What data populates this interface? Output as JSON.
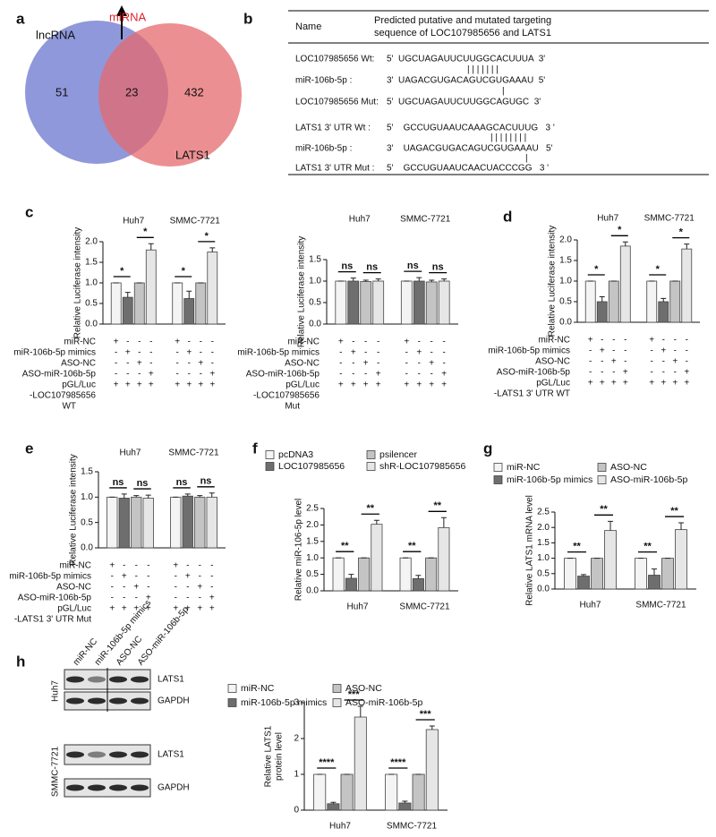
{
  "panels": [
    "a",
    "b",
    "c",
    "d",
    "e",
    "f",
    "g",
    "h"
  ],
  "venn": {
    "sets": [
      "lncRNA",
      "LATS1"
    ],
    "intersection_label": "miRNA",
    "counts": [
      51,
      23,
      432
    ]
  },
  "sequences": {
    "header": [
      "Name",
      "Predicted putative and mutated targeting",
      "sequence of LOC107985656 and LATS1"
    ],
    "rows": [
      [
        "LOC107985656 Wt:",
        "5'  UGCUAGAUUCUUGGCACUUUA  3'"
      ],
      [
        "",
        "| | | | | | |"
      ],
      [
        "miR-106b-5p :",
        "3'  UAGACGUGACAGUCGUGAAAU  5'"
      ],
      [
        "",
        "|"
      ],
      [
        "LOC107985656 Mut:",
        "5'  UGCUAGAUUCUUGGCAGUGC  3'"
      ],
      [
        "LATS1 3' UTR Wt :",
        "5'    GCCUGUAAUCAAAGCACUUUG   3 '"
      ],
      [
        "",
        "| | | | | | | |"
      ],
      [
        "miR-106b-5p :",
        "3'    UAGACGUGACAGUCGUGAAAU   5'"
      ],
      [
        "",
        "|"
      ],
      [
        "LATS1 3' UTR Mut :",
        "5'    GCCUGUAAUCAACUACCCGG   3 '"
      ]
    ]
  },
  "blot": {
    "lanes": [
      "miR-NC",
      "miR-106b-5p mimics",
      "ASO-NC",
      "ASO-miR-106b-5p"
    ],
    "cells": [
      "Huh7",
      "SMMC-7721"
    ],
    "bands": [
      "LATS1",
      "GAPDH"
    ]
  },
  "chart_data": [
    {
      "type": "bar",
      "y_label": [
        "Relative Luciferase intensity"
      ],
      "categories": [
        "Huh7",
        "SMMC-7721"
      ],
      "ylim": [
        0,
        2
      ],
      "yticks": [
        {
          "value": 0,
          "label": "0.0"
        },
        {
          "value": 0.5,
          "label": "0.5"
        },
        {
          "value": 1,
          "label": "1.0"
        },
        {
          "value": 1.5,
          "label": "1.5"
        },
        {
          "value": 2,
          "label": "2.0"
        }
      ],
      "series": [
        {
          "name": "miR-NC",
          "color": "#f4f4f4",
          "values": [
            1,
            1
          ],
          "errors": [
            0,
            0
          ],
          "signs": [
            "+",
            "-",
            "-",
            "-",
            "+",
            "-",
            "-",
            "-"
          ]
        },
        {
          "name": "miR-106b-5p mimics",
          "color": "#6e6e6e",
          "values": [
            0.65,
            0.62
          ],
          "errors": [
            0.12,
            0.18
          ],
          "signs": [
            "-",
            "+",
            "-",
            "-",
            "-",
            "+",
            "-",
            "-"
          ]
        },
        {
          "name": "ASO-NC",
          "color": "#c4c4c4",
          "values": [
            1,
            1
          ],
          "errors": [
            0,
            0
          ],
          "signs": [
            "-",
            "-",
            "+",
            "-",
            "-",
            "-",
            "+",
            "-"
          ]
        },
        {
          "name": "ASO-miR-106b-5p",
          "color": "#e6e6e6",
          "values": [
            1.8,
            1.75
          ],
          "errors": [
            0.15,
            0.1
          ],
          "signs": [
            "-",
            "-",
            "-",
            "+",
            "-",
            "-",
            "-",
            "+"
          ]
        }
      ],
      "reporter": {
        "label": "pGL/Luc",
        "signs": [
          "+",
          "+",
          "+",
          "+",
          "+",
          "+",
          "+",
          "+"
        ]
      },
      "construct": [
        "-LOC107985656",
        "WT"
      ],
      "significance": [
        [
          "*",
          "*"
        ],
        [
          "*",
          "*"
        ]
      ]
    },
    {
      "type": "bar",
      "y_label": [
        "Relative Luciferase intensity"
      ],
      "categories": [
        "Huh7",
        "SMMC-7721"
      ],
      "ylim": [
        0,
        1.5
      ],
      "yticks": [
        {
          "value": 0,
          "label": "0.0"
        },
        {
          "value": 0.5,
          "label": "0.5"
        },
        {
          "value": 1,
          "label": "1.0"
        },
        {
          "value": 1.5,
          "label": "1.5"
        }
      ],
      "series": [
        {
          "name": "miR-NC",
          "color": "#f4f4f4",
          "values": [
            1,
            1
          ],
          "errors": [
            0,
            0
          ],
          "signs": [
            "+",
            "-",
            "-",
            "-",
            "+",
            "-",
            "-",
            "-"
          ]
        },
        {
          "name": "miR-106b-5p mimics",
          "color": "#6e6e6e",
          "values": [
            1,
            1
          ],
          "errors": [
            0.07,
            0.08
          ],
          "signs": [
            "-",
            "+",
            "-",
            "-",
            "-",
            "+",
            "-",
            "-"
          ]
        },
        {
          "name": "ASO-NC",
          "color": "#c4c4c4",
          "values": [
            0.99,
            0.98
          ],
          "errors": [
            0.03,
            0.04
          ],
          "signs": [
            "-",
            "-",
            "+",
            "-",
            "-",
            "-",
            "+",
            "-"
          ]
        },
        {
          "name": "ASO-miR-106b-5p",
          "color": "#e6e6e6",
          "values": [
            1,
            1
          ],
          "errors": [
            0.05,
            0.05
          ],
          "signs": [
            "-",
            "-",
            "-",
            "+",
            "-",
            "-",
            "-",
            "+"
          ]
        }
      ],
      "reporter": {
        "label": "pGL/Luc",
        "signs": [
          "+",
          "+",
          "+",
          "+",
          "+",
          "+",
          "+",
          "+"
        ]
      },
      "construct": [
        "-LOC107985656",
        "Mut"
      ],
      "significance": [
        [
          "ns",
          "ns"
        ],
        [
          "ns",
          "ns"
        ]
      ]
    },
    {
      "type": "bar",
      "y_label": [
        "Relative Luciferase intensity"
      ],
      "categories": [
        "Huh7",
        "SMMC-7721"
      ],
      "ylim": [
        0,
        2
      ],
      "yticks": [
        {
          "value": 0,
          "label": "0.0"
        },
        {
          "value": 0.5,
          "label": "0.5"
        },
        {
          "value": 1,
          "label": "1.0"
        },
        {
          "value": 1.5,
          "label": "1.5"
        },
        {
          "value": 2,
          "label": "2.0"
        }
      ],
      "series": [
        {
          "name": "miR-NC",
          "color": "#f4f4f4",
          "values": [
            1,
            1
          ],
          "errors": [
            0,
            0
          ],
          "signs": [
            "+",
            "-",
            "-",
            "-",
            "+",
            "-",
            "-",
            "-"
          ]
        },
        {
          "name": "miR-106b-5p mimics",
          "color": "#6e6e6e",
          "values": [
            0.5,
            0.5
          ],
          "errors": [
            0.12,
            0.08
          ],
          "signs": [
            "-",
            "+",
            "-",
            "-",
            "-",
            "+",
            "-",
            "-"
          ]
        },
        {
          "name": "ASO-NC",
          "color": "#c4c4c4",
          "values": [
            1,
            1
          ],
          "errors": [
            0,
            0
          ],
          "signs": [
            "-",
            "-",
            "+",
            "-",
            "-",
            "-",
            "+",
            "-"
          ]
        },
        {
          "name": "ASO-miR-106b-5p",
          "color": "#e6e6e6",
          "values": [
            1.85,
            1.78
          ],
          "errors": [
            0.1,
            0.12
          ],
          "signs": [
            "-",
            "-",
            "-",
            "+",
            "-",
            "-",
            "-",
            "+"
          ]
        }
      ],
      "reporter": {
        "label": "pGL/Luc",
        "signs": [
          "+",
          "+",
          "+",
          "+",
          "+",
          "+",
          "+",
          "+"
        ]
      },
      "construct": [
        "-LATS1 3' UTR WT"
      ],
      "significance": [
        [
          "*",
          "*"
        ],
        [
          "*",
          "*"
        ]
      ]
    },
    {
      "type": "bar",
      "y_label": [
        "Relative Luciferase intensity"
      ],
      "categories": [
        "Huh7",
        "SMMC-7721"
      ],
      "ylim": [
        0,
        1.5
      ],
      "yticks": [
        {
          "value": 0,
          "label": "0.0"
        },
        {
          "value": 0.5,
          "label": "0.5"
        },
        {
          "value": 1,
          "label": "1.0"
        },
        {
          "value": 1.5,
          "label": "1.5"
        }
      ],
      "series": [
        {
          "name": "miR-NC",
          "color": "#f4f4f4",
          "values": [
            1,
            1
          ],
          "errors": [
            0,
            0
          ],
          "signs": [
            "+",
            "-",
            "-",
            "-",
            "+",
            "-",
            "-",
            "-"
          ]
        },
        {
          "name": "miR-106b-5p mimics",
          "color": "#6e6e6e",
          "values": [
            0.98,
            1.02
          ],
          "errors": [
            0.08,
            0.04
          ],
          "signs": [
            "-",
            "+",
            "-",
            "-",
            "-",
            "+",
            "-",
            "-"
          ]
        },
        {
          "name": "ASO-NC",
          "color": "#c4c4c4",
          "values": [
            1,
            1
          ],
          "errors": [
            0.03,
            0.03
          ],
          "signs": [
            "-",
            "-",
            "+",
            "-",
            "-",
            "-",
            "+",
            "-"
          ]
        },
        {
          "name": "ASO-miR-106b-5p",
          "color": "#e6e6e6",
          "values": [
            0.98,
            1
          ],
          "errors": [
            0.06,
            0.08
          ],
          "signs": [
            "-",
            "-",
            "-",
            "+",
            "-",
            "-",
            "-",
            "+"
          ]
        }
      ],
      "reporter": {
        "label": "pGL/Luc",
        "signs": [
          "+",
          "+",
          "+",
          "+",
          "+",
          "+",
          "+",
          "+"
        ]
      },
      "construct": [
        "-LATS1 3' UTR Mut"
      ],
      "significance": [
        [
          "ns",
          "ns"
        ],
        [
          "ns",
          "ns"
        ]
      ]
    },
    {
      "type": "bar",
      "y_label": [
        "Relative miR-106-5p level"
      ],
      "categories": [
        "Huh7",
        "SMMC-7721"
      ],
      "ylim": [
        0,
        2.5
      ],
      "legend": true,
      "yticks": [
        {
          "value": 0,
          "label": "0.0"
        },
        {
          "value": 0.5,
          "label": "0.5"
        },
        {
          "value": 1,
          "label": "1.0"
        },
        {
          "value": 1.5,
          "label": "1.5"
        },
        {
          "value": 2,
          "label": "2.0"
        },
        {
          "value": 2.5,
          "label": "2.5"
        }
      ],
      "series": [
        {
          "name": "pcDNA3",
          "color": "#f4f4f4",
          "values": [
            1,
            1
          ],
          "errors": [
            0,
            0
          ]
        },
        {
          "name": "LOC107985656",
          "color": "#6e6e6e",
          "values": [
            0.38,
            0.37
          ],
          "errors": [
            0.12,
            0.1
          ]
        },
        {
          "name": "psilencer",
          "color": "#c4c4c4",
          "values": [
            1,
            1
          ],
          "errors": [
            0,
            0
          ]
        },
        {
          "name": "shR-LOC107985656",
          "color": "#e6e6e6",
          "values": [
            2.02,
            1.92
          ],
          "errors": [
            0.12,
            0.3
          ]
        }
      ],
      "significance": [
        [
          "**",
          "**"
        ],
        [
          "**",
          "**"
        ]
      ]
    },
    {
      "type": "bar",
      "y_label": [
        "Relative LATS1 mRNA level"
      ],
      "categories": [
        "Huh7",
        "SMMC-7721"
      ],
      "ylim": [
        0,
        2.5
      ],
      "legend": true,
      "yticks": [
        {
          "value": 0,
          "label": "0.0"
        },
        {
          "value": 0.5,
          "label": "0.5"
        },
        {
          "value": 1,
          "label": "1.0"
        },
        {
          "value": 1.5,
          "label": "1.5"
        },
        {
          "value": 2,
          "label": "2.0"
        },
        {
          "value": 2.5,
          "label": "2.5"
        }
      ],
      "series": [
        {
          "name": "miR-NC",
          "color": "#f4f4f4",
          "values": [
            1,
            1
          ],
          "errors": [
            0,
            0
          ]
        },
        {
          "name": "miR-106b-5p mimics",
          "color": "#6e6e6e",
          "values": [
            0.42,
            0.45
          ],
          "errors": [
            0.05,
            0.2
          ]
        },
        {
          "name": "ASO-NC",
          "color": "#c4c4c4",
          "values": [
            1,
            1
          ],
          "errors": [
            0,
            0
          ]
        },
        {
          "name": "ASO-miR-106b-5p",
          "color": "#e6e6e6",
          "values": [
            1.9,
            1.93
          ],
          "errors": [
            0.3,
            0.22
          ]
        }
      ],
      "significance": [
        [
          "**",
          "**"
        ],
        [
          "**",
          "**"
        ]
      ]
    },
    {
      "type": "bar",
      "y_label": [
        "Relative LATS1",
        "protein level"
      ],
      "categories": [
        "Huh7",
        "SMMC-7721"
      ],
      "ylim": [
        0,
        3
      ],
      "legend": true,
      "yticks": [
        0,
        1,
        2,
        3
      ],
      "series": [
        {
          "name": "miR-NC",
          "color": "#f4f4f4",
          "values": [
            1,
            1
          ],
          "errors": [
            0,
            0
          ]
        },
        {
          "name": "miR-106b-5p mimics",
          "color": "#6e6e6e",
          "values": [
            0.18,
            0.2
          ],
          "errors": [
            0.04,
            0.05
          ]
        },
        {
          "name": "ASO-NC",
          "color": "#c4c4c4",
          "values": [
            1,
            1
          ],
          "errors": [
            0,
            0
          ]
        },
        {
          "name": "ASO-miR-106b-5p",
          "color": "#e6e6e6",
          "values": [
            2.6,
            2.25
          ],
          "errors": [
            0.3,
            0.1
          ]
        }
      ],
      "significance": [
        [
          "****",
          "***"
        ],
        [
          "****",
          "***"
        ]
      ]
    }
  ]
}
